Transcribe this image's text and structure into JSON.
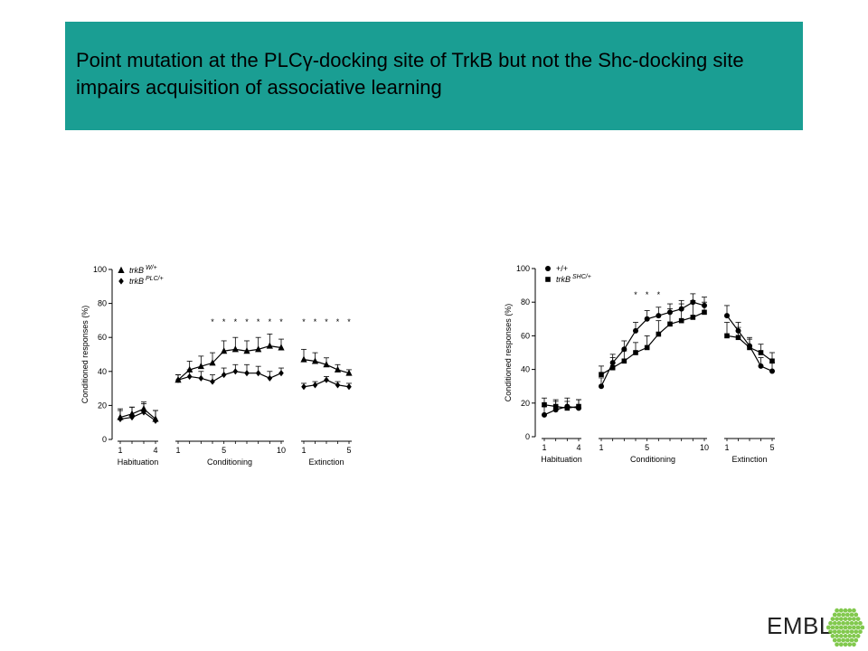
{
  "title": "Point mutation at the PLCγ-docking site of TrkB but not the Shc-docking site impairs acquisition of associative learning",
  "logo": {
    "text": "EMBL",
    "color": "#6cbf2f"
  },
  "banner_color": "#1a9e93",
  "chart_data": [
    {
      "type": "line",
      "ylabel": "Conditioned responses (%)",
      "ylim": [
        0,
        100
      ],
      "yticks": [
        0,
        20,
        40,
        60,
        80,
        100
      ],
      "groups": [
        {
          "label": "Habituation",
          "tick_labels": [
            "1",
            "4"
          ],
          "sessions": [
            1,
            2,
            3,
            4
          ]
        },
        {
          "label": "Conditioning",
          "tick_labels": [
            "1",
            "5",
            "10"
          ],
          "sessions": [
            1,
            2,
            3,
            4,
            5,
            6,
            7,
            8,
            9,
            10
          ]
        },
        {
          "label": "Extinction",
          "tick_labels": [
            "1",
            "5"
          ],
          "sessions": [
            1,
            2,
            3,
            4,
            5
          ]
        }
      ],
      "series": [
        {
          "name": "trkB W/+",
          "name_main": "trkB",
          "name_sup": "W/+",
          "marker": "triangle",
          "values": [
            [
              13,
              15,
              18,
              12
            ],
            [
              35,
              41,
              43,
              45,
              52,
              53,
              52,
              53,
              55,
              54
            ],
            [
              47,
              46,
              44,
              41,
              39
            ]
          ],
          "errors": [
            [
              4,
              4,
              4,
              5
            ],
            [
              3,
              5,
              6,
              6,
              6,
              7,
              6,
              7,
              7,
              5
            ],
            [
              6,
              5,
              4,
              3,
              2
            ]
          ]
        },
        {
          "name": "trkB PLC/+",
          "name_main": "trkB",
          "name_sup": "PLC/+",
          "marker": "diamond",
          "values": [
            [
              12,
              13,
              16,
              11
            ],
            [
              35,
              37,
              36,
              34,
              38,
              40,
              39,
              39,
              36,
              39
            ],
            [
              31,
              32,
              35,
              32,
              31
            ]
          ],
          "errors": [
            [
              6,
              6,
              5,
              6
            ],
            [
              3,
              4,
              4,
              4,
              4,
              4,
              5,
              4,
              4,
              3
            ],
            [
              2,
              2,
              2,
              2,
              2
            ]
          ]
        }
      ],
      "significance": [
        {
          "group": 1,
          "sessions": [
            4,
            5,
            6,
            7,
            8,
            9,
            10
          ]
        },
        {
          "group": 2,
          "sessions": [
            1,
            2,
            3,
            4,
            5
          ]
        }
      ]
    },
    {
      "type": "line",
      "ylabel": "Conditioned responses (%)",
      "ylim": [
        0,
        100
      ],
      "yticks": [
        0,
        20,
        40,
        60,
        80,
        100
      ],
      "groups": [
        {
          "label": "Habituation",
          "tick_labels": [
            "1",
            "4"
          ],
          "sessions": [
            1,
            2,
            3,
            4
          ]
        },
        {
          "label": "Conditioning",
          "tick_labels": [
            "1",
            "5",
            "10"
          ],
          "sessions": [
            1,
            2,
            3,
            4,
            5,
            6,
            7,
            8,
            9,
            10
          ]
        },
        {
          "label": "Extinction",
          "tick_labels": [
            "1",
            "5"
          ],
          "sessions": [
            1,
            2,
            3,
            4,
            5
          ]
        }
      ],
      "series": [
        {
          "name": "+/+",
          "name_main": "+/+",
          "name_sup": "",
          "marker": "circle",
          "values": [
            [
              13,
              16,
              18,
              17
            ],
            [
              30,
              44,
              52,
              63,
              70,
              72,
              74,
              76,
              80,
              78
            ],
            [
              72,
              63,
              54,
              42,
              39
            ]
          ],
          "errors": [
            [
              5,
              5,
              5,
              5
            ],
            [
              5,
              5,
              5,
              5,
              5,
              5,
              5,
              5,
              5,
              5
            ],
            [
              6,
              5,
              5,
              5,
              5
            ]
          ]
        },
        {
          "name": "trkB SHC/+",
          "name_main": "trkB",
          "name_sup": "SHC/+",
          "marker": "square",
          "values": [
            [
              19,
              18,
              17,
              18
            ],
            [
              37,
              41,
              45,
              50,
              53,
              61,
              67,
              69,
              71,
              74
            ],
            [
              60,
              59,
              53,
              50,
              45
            ]
          ],
          "errors": [
            [
              4,
              4,
              4,
              4
            ],
            [
              5,
              6,
              6,
              6,
              7,
              8,
              9,
              10,
              10,
              6
            ],
            [
              8,
              6,
              5,
              5,
              5
            ]
          ]
        }
      ],
      "significance": [
        {
          "group": 1,
          "sessions": [
            4,
            5,
            6
          ]
        }
      ]
    }
  ]
}
